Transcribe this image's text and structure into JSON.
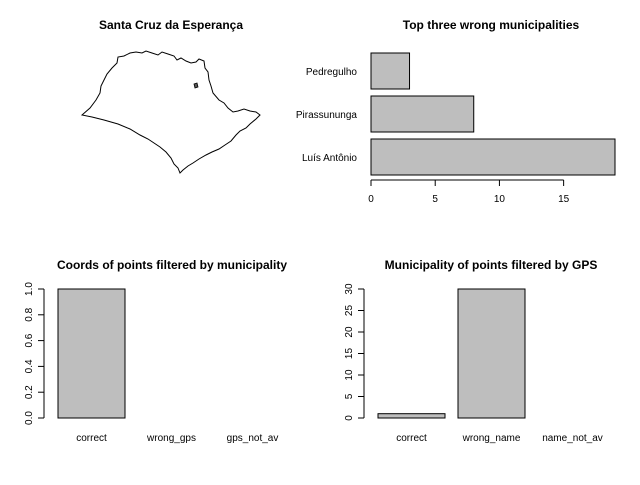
{
  "map_panel": {
    "title": "Santa Cruz da Esperança"
  },
  "chart_data": [
    {
      "type": "bar",
      "orientation": "horizontal",
      "title": "Top three wrong municipalities",
      "categories": [
        "Pedregulho",
        "Pirassununga",
        "Luís Antônio"
      ],
      "values": [
        3,
        8,
        19
      ],
      "xlim": [
        0,
        19
      ],
      "xticks": [
        0,
        5,
        10,
        15
      ],
      "xlabel": "",
      "ylabel": "",
      "bar_color": "#bebebe",
      "grid": false
    },
    {
      "type": "bar",
      "title": "Coords of points filtered by municipality",
      "categories": [
        "correct",
        "wrong_gps",
        "gps_not_av"
      ],
      "values": [
        1,
        0,
        0
      ],
      "ylim": [
        0,
        1
      ],
      "yticks": [
        "0.0",
        "0.2",
        "0.4",
        "0.6",
        "0.8",
        "1.0"
      ],
      "xlabel": "",
      "ylabel": "",
      "bar_color": "#bebebe",
      "grid": false
    },
    {
      "type": "bar",
      "title": "Municipality of points filtered by GPS",
      "categories": [
        "correct",
        "wrong_name",
        "name_not_av"
      ],
      "values": [
        1,
        30,
        0
      ],
      "ylim": [
        0,
        30
      ],
      "yticks": [
        "0",
        "5",
        "10",
        "15",
        "20",
        "25",
        "30"
      ],
      "xlabel": "",
      "ylabel": "",
      "bar_color": "#bebebe",
      "grid": false
    }
  ]
}
